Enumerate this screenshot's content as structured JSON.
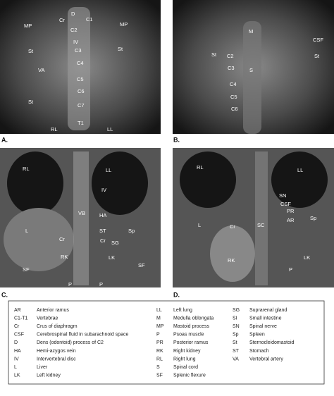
{
  "panels": [
    {
      "label": "A.",
      "annotations": [
        "MP",
        "Cr",
        "D",
        "C1",
        "MP",
        "C2",
        "IV",
        "C3",
        "St",
        "St",
        "C4",
        "VA",
        "C5",
        "C6",
        "St",
        "C7",
        "T1",
        "RL",
        "LL"
      ]
    },
    {
      "label": "B.",
      "annotations": [
        "M",
        "CSF",
        "St",
        "C2",
        "S",
        "St",
        "C3",
        "C4",
        "C5",
        "C6"
      ]
    },
    {
      "label": "C.",
      "annotations": [
        "RL",
        "LL",
        "IV",
        "VB",
        "HA",
        "L",
        "ST",
        "Sp",
        "Cr",
        "Cr",
        "SG",
        "RK",
        "LK",
        "SF",
        "SF",
        "P",
        "P"
      ]
    },
    {
      "label": "D.",
      "annotations": [
        "RL",
        "LL",
        "SN",
        "CSF",
        "PR",
        "AR",
        "Sp",
        "L",
        "Cr",
        "SC",
        "RK",
        "LK",
        "P"
      ]
    }
  ],
  "legend": [
    {
      "abbr": "AR",
      "text": "Anterior ramus"
    },
    {
      "abbr": "C1-T1",
      "text": "Vertebrae"
    },
    {
      "abbr": "Cr",
      "text": "Crus of diaphragm"
    },
    {
      "abbr": "CSF",
      "text": "Cerebrospinal fluid in subarachnoid space"
    },
    {
      "abbr": "D",
      "text": "Dens (odontoid) process of C2"
    },
    {
      "abbr": "HA",
      "text": "Hemi-azygos vein"
    },
    {
      "abbr": "IV",
      "text": "Intervertebral disc"
    },
    {
      "abbr": "L",
      "text": "Liver"
    },
    {
      "abbr": "LK",
      "text": "Left kidney"
    },
    {
      "abbr": "LL",
      "text": "Left lung"
    },
    {
      "abbr": "M",
      "text": "Medulla oblongata"
    },
    {
      "abbr": "MP",
      "text": "Mastoid process"
    },
    {
      "abbr": "P",
      "text": "Psoas muscle"
    },
    {
      "abbr": "PR",
      "text": "Posterior ramus"
    },
    {
      "abbr": "RK",
      "text": "Right kidney"
    },
    {
      "abbr": "RL",
      "text": "Right lung"
    },
    {
      "abbr": "S",
      "text": "Spinal cord"
    },
    {
      "abbr": "SF",
      "text": "Splenic flexure"
    },
    {
      "abbr": "SG",
      "text": "Suprarenal gland"
    },
    {
      "abbr": "SI",
      "text": "Small intestine"
    },
    {
      "abbr": "SN",
      "text": "Spinal nerve"
    },
    {
      "abbr": "Sp",
      "text": "Spleen"
    },
    {
      "abbr": "St",
      "text": "Sternocleidomastoid"
    },
    {
      "abbr": "ST",
      "text": "Stomach"
    },
    {
      "abbr": "VA",
      "text": "Vertebral artery"
    }
  ]
}
